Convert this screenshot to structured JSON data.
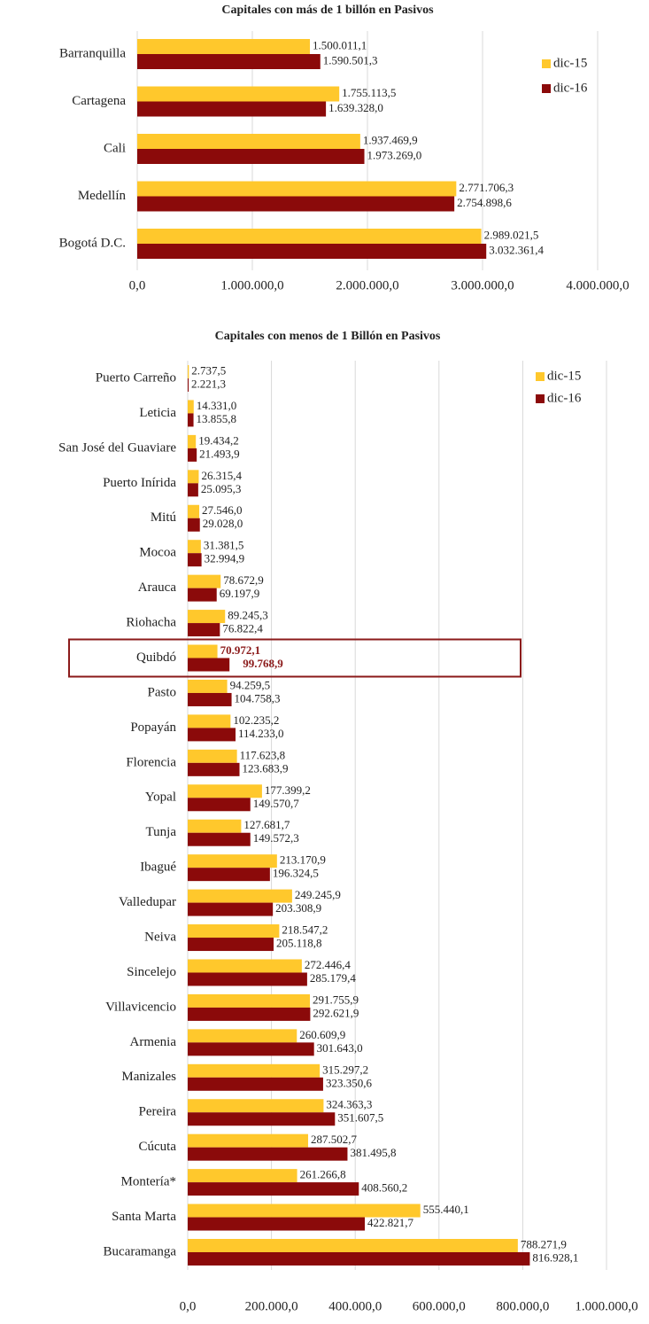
{
  "chart_data": [
    {
      "type": "bar",
      "orientation": "horizontal",
      "title": "Capitales  con más de 1 billón en Pasivos",
      "categories": [
        "Barranquilla",
        "Cartagena",
        "Cali",
        "Medellín",
        "Bogotá D.C."
      ],
      "series": [
        {
          "name": "dic-15",
          "color": "#ffc82c",
          "values": [
            1500011.1,
            1755113.5,
            1937469.9,
            2771706.3,
            2989021.5
          ],
          "value_labels": [
            "1.500.011,1",
            "1.755.113,5",
            "1.937.469,9",
            "2.771.706,3",
            "2.989.021,5"
          ]
        },
        {
          "name": "dic-16",
          "color": "#8b0a0a",
          "values": [
            1590501.3,
            1639328.0,
            1973269.0,
            2754898.6,
            3032361.4
          ],
          "value_labels": [
            "1.590.501,3",
            "1.639.328,0",
            "1.973.269,0",
            "2.754.898,6",
            "3.032.361,4"
          ]
        }
      ],
      "xlim": [
        0,
        4000000
      ],
      "xticks": [
        {
          "value": 0,
          "label": "0,0"
        },
        {
          "value": 1000000,
          "label": "1.000.000,0"
        },
        {
          "value": 2000000,
          "label": "2.000.000,0"
        },
        {
          "value": 3000000,
          "label": "3.000.000,0"
        },
        {
          "value": 4000000,
          "label": "4.000.000,0"
        }
      ],
      "grid": true,
      "legend": "top-right"
    },
    {
      "type": "bar",
      "orientation": "horizontal",
      "title": "Capitales  con menos de 1 Billón en Pasivos",
      "categories": [
        "Puerto Carreño",
        "Leticia",
        "San José del Guaviare",
        "Puerto Inírida",
        "Mitú",
        "Mocoa",
        "Arauca",
        "Riohacha",
        "Quibdó",
        "Pasto",
        "Popayán",
        "Florencia",
        "Yopal",
        "Tunja",
        "Ibagué",
        "Valledupar",
        "Neiva",
        "Sincelejo",
        "Villavicencio",
        "Armenia",
        "Manizales",
        "Pereira",
        "Cúcuta",
        "Montería*",
        "Santa Marta",
        "Bucaramanga"
      ],
      "series": [
        {
          "name": "dic-15",
          "color": "#ffc82c",
          "values": [
            2737.5,
            14331.0,
            19434.2,
            26315.4,
            27546.0,
            31381.5,
            78672.9,
            89245.3,
            70972.1,
            94259.5,
            102235.2,
            117623.8,
            177399.2,
            127681.7,
            213170.9,
            249245.9,
            218547.2,
            272446.4,
            291755.9,
            260609.9,
            315297.2,
            324363.3,
            287502.7,
            261266.8,
            555440.1,
            788271.9
          ],
          "value_labels": [
            "2.737,5",
            "14.331,0",
            "19.434,2",
            "26.315,4",
            "27.546,0",
            "31.381,5",
            "78.672,9",
            "89.245,3",
            "70.972,1",
            "94.259,5",
            "102.235,2",
            "117.623,8",
            "177.399,2",
            "127.681,7",
            "213.170,9",
            "249.245,9",
            "218.547,2",
            "272.446,4",
            "291.755,9",
            "260.609,9",
            "315.297,2",
            "324.363,3",
            "287.502,7",
            "261.266,8",
            "555.440,1",
            "788.271,9"
          ]
        },
        {
          "name": "dic-16",
          "color": "#8b0a0a",
          "values": [
            2221.3,
            13855.8,
            21493.9,
            25095.3,
            29028.0,
            32994.9,
            69197.9,
            76822.4,
            99768.9,
            104758.3,
            114233.0,
            123683.9,
            149570.7,
            149572.3,
            196324.5,
            203308.9,
            205118.8,
            285179.4,
            292621.9,
            301643.0,
            323350.6,
            351607.5,
            381495.8,
            408560.2,
            422821.7,
            816928.1
          ],
          "value_labels": [
            "2.221,3",
            "13.855,8",
            "21.493,9",
            "25.095,3",
            "29.028,0",
            "32.994,9",
            "69.197,9",
            "76.822,4",
            "99.768,9",
            "104.758,3",
            "114.233,0",
            "123.683,9",
            "149.570,7",
            "149.572,3",
            "196.324,5",
            "203.308,9",
            "205.118,8",
            "285.179,4",
            "292.621,9",
            "301.643,0",
            "323.350,6",
            "351.607,5",
            "381.495,8",
            "408.560,2",
            "422.821,7",
            "816.928,1"
          ]
        }
      ],
      "xlim": [
        0,
        1000000
      ],
      "xticks": [
        {
          "value": 0,
          "label": "0,0"
        },
        {
          "value": 200000,
          "label": "200.000,0"
        },
        {
          "value": 400000,
          "label": "400.000,0"
        },
        {
          "value": 600000,
          "label": "600.000,0"
        },
        {
          "value": 800000,
          "label": "800.000,0"
        },
        {
          "value": 1000000,
          "label": "1.000.000,0"
        }
      ],
      "grid": true,
      "legend": "top-right"
    }
  ]
}
